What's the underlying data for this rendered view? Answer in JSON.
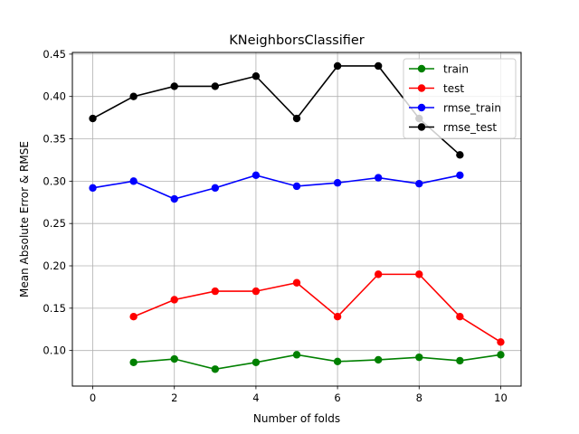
{
  "chart_data": {
    "type": "line",
    "title": "KNeighborsClassifier",
    "xlabel": "Number of folds",
    "ylabel": "Mean Absolute Error & RMSE",
    "xlim": [
      -0.5,
      10.5
    ],
    "ylim": [
      0.058,
      0.452
    ],
    "xticks": [
      0,
      2,
      4,
      6,
      8,
      10
    ],
    "xtick_labels": [
      "0",
      "2",
      "4",
      "6",
      "8",
      "10"
    ],
    "yticks": [
      0.1,
      0.15,
      0.2,
      0.25,
      0.3,
      0.35,
      0.4,
      0.45
    ],
    "ytick_labels": [
      "0.10",
      "0.15",
      "0.20",
      "0.25",
      "0.30",
      "0.35",
      "0.40",
      "0.45"
    ],
    "grid": true,
    "legend_position": "top-right",
    "series": [
      {
        "name": "train",
        "color": "#008000",
        "x": [
          1,
          2,
          3,
          4,
          5,
          6,
          7,
          8,
          9,
          10
        ],
        "y": [
          0.086,
          0.09,
          0.078,
          0.086,
          0.095,
          0.087,
          0.089,
          0.092,
          0.088,
          0.095
        ]
      },
      {
        "name": "test",
        "color": "#ff0000",
        "x": [
          1,
          2,
          3,
          4,
          5,
          6,
          7,
          8,
          9,
          10
        ],
        "y": [
          0.14,
          0.16,
          0.17,
          0.17,
          0.18,
          0.14,
          0.19,
          0.19,
          0.14,
          0.11
        ]
      },
      {
        "name": "rmse_train",
        "color": "#0000ff",
        "x": [
          0,
          1,
          2,
          3,
          4,
          5,
          6,
          7,
          8,
          9
        ],
        "y": [
          0.292,
          0.3,
          0.279,
          0.292,
          0.307,
          0.294,
          0.298,
          0.304,
          0.297,
          0.307
        ]
      },
      {
        "name": "rmse_test",
        "color": "#000000",
        "x": [
          0,
          1,
          2,
          3,
          4,
          5,
          6,
          7,
          8,
          9
        ],
        "y": [
          0.374,
          0.4,
          0.412,
          0.412,
          0.424,
          0.374,
          0.436,
          0.436,
          0.374,
          0.331
        ]
      }
    ]
  }
}
